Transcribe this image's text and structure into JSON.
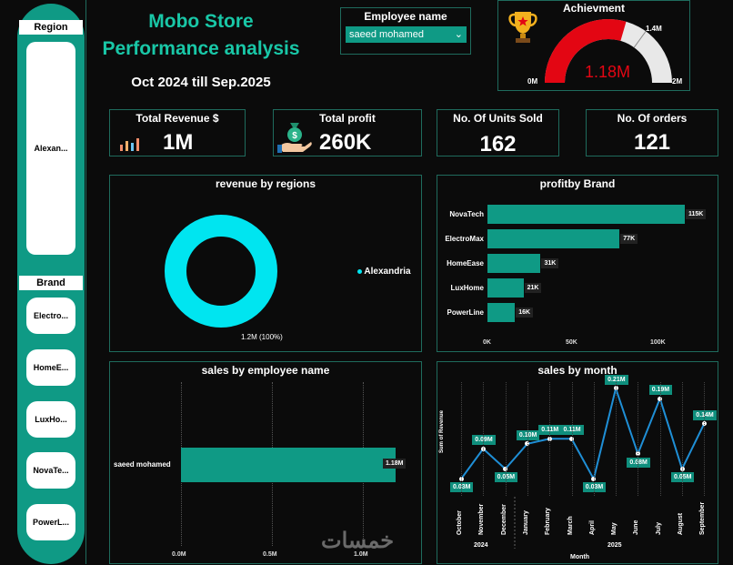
{
  "title_line1": "Mobo Store",
  "title_line2": "Performance analysis",
  "period": "Oct 2024 till Sep.2025",
  "colors": {
    "accent": "#19c7a7",
    "bar": "#0f9a85",
    "cyan": "#00e5f0",
    "gauge_red": "#e30613",
    "line": "#1f8fd6"
  },
  "slicers": {
    "region_label": "Region",
    "region_value": "Alexan...",
    "brand_label": "Brand",
    "brands": [
      "Electro...",
      "HomeE...",
      "LuxHo...",
      "NovaTe...",
      "PowerL..."
    ]
  },
  "employee_filter": {
    "label": "Employee name",
    "value": "saeed mohamed"
  },
  "achievement": {
    "title": "Achievment",
    "value": 1.18,
    "min": 0,
    "max": 2,
    "target": 1.4,
    "value_label": "1.18M",
    "min_label": "0M",
    "max_label": "2M",
    "target_label": "1.4M"
  },
  "kpis": {
    "revenue": {
      "title": "Total Revenue $",
      "value": "1M"
    },
    "profit": {
      "title": "Total profit",
      "value": "260K"
    },
    "units": {
      "title": "No. Of Units Sold",
      "value": "162"
    },
    "orders": {
      "title": "No. Of orders",
      "value": "121"
    }
  },
  "chart_data": [
    {
      "type": "pie",
      "title": "revenue by regions",
      "categories": [
        "Alexandria"
      ],
      "values": [
        1.2
      ],
      "data_labels": [
        "1.2M (100%)"
      ],
      "legend": [
        "Alexandria"
      ]
    },
    {
      "type": "bar",
      "orientation": "horizontal",
      "title": "profitby Brand",
      "categories": [
        "NovaTech",
        "ElectroMax",
        "HomeEase",
        "LuxHome",
        "PowerLine"
      ],
      "values": [
        115,
        77,
        31,
        21,
        16
      ],
      "data_labels": [
        "115K",
        "77K",
        "31K",
        "21K",
        "16K"
      ],
      "xticks": [
        "0K",
        "50K",
        "100K"
      ],
      "xlim": [
        0,
        115
      ]
    },
    {
      "type": "bar",
      "orientation": "horizontal",
      "title": "sales by employee name",
      "categories": [
        "saeed mohamed"
      ],
      "values": [
        1.18
      ],
      "data_labels": [
        "1.18M"
      ],
      "xticks": [
        "0.0M",
        "0.5M",
        "1.0M"
      ],
      "xlim": [
        0,
        1.18
      ]
    },
    {
      "type": "line",
      "title": "sales by month",
      "ylabel": "Sum of Revenue",
      "xlabel": "Month",
      "categories": [
        "October",
        "November",
        "December",
        "January",
        "February",
        "March",
        "April",
        "May",
        "June",
        "July",
        "August",
        "September"
      ],
      "years": [
        "2024",
        "2025"
      ],
      "values": [
        0.03,
        0.09,
        0.05,
        0.1,
        0.11,
        0.11,
        0.03,
        0.21,
        0.08,
        0.19,
        0.05,
        0.14
      ],
      "data_labels": [
        "0.03M",
        "0.09M",
        "0.05M",
        "0.10M",
        "0.11M",
        "0.11M",
        "0.03M",
        "0.21M",
        "0.08M",
        "0.19M",
        "0.05M",
        "0.14M"
      ]
    }
  ],
  "watermark": "خمسات"
}
